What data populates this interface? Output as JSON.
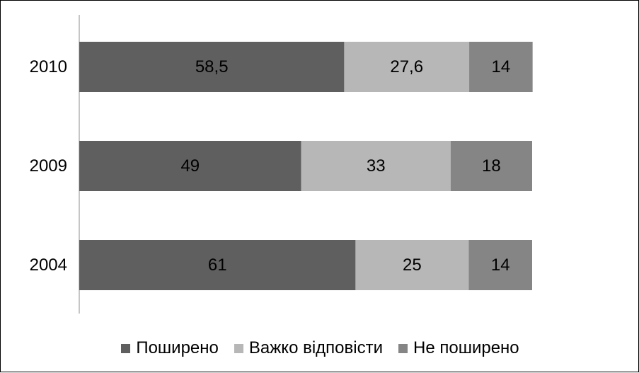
{
  "chart_data": {
    "type": "bar",
    "orientation": "horizontal",
    "stacked": true,
    "categories": [
      "2010",
      "2009",
      "2004"
    ],
    "series": [
      {
        "name": "Поширено",
        "color": "#5f5f5f",
        "values": [
          58.5,
          49,
          61
        ],
        "labels": [
          "58,5",
          "49",
          "61"
        ]
      },
      {
        "name": "Важко відповісти",
        "color": "#b7b7b7",
        "values": [
          27.6,
          33,
          25
        ],
        "labels": [
          "27,6",
          "33",
          "25"
        ]
      },
      {
        "name": "Не поширено",
        "color": "#858585",
        "values": [
          14,
          18,
          14
        ],
        "labels": [
          "14",
          "18",
          "14"
        ]
      }
    ],
    "xlim": [
      0,
      100
    ],
    "grid": false,
    "legend_position": "bottom"
  }
}
